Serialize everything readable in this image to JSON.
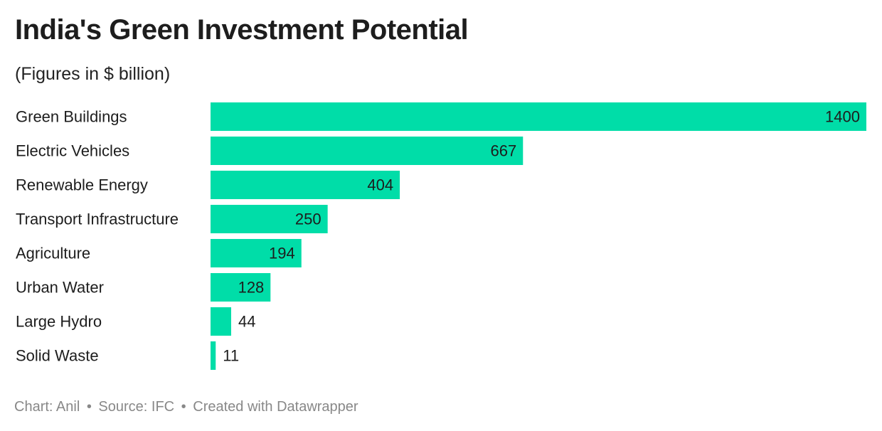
{
  "header": {
    "title": "India's Green Investment Potential",
    "subtitle": "(Figures in $ billion)"
  },
  "chart_data": {
    "type": "bar",
    "orientation": "horizontal",
    "categories": [
      "Green Buildings",
      "Electric Vehicles",
      "Renewable Energy",
      "Transport Infrastructure",
      "Agriculture",
      "Urban Water",
      "Large Hydro",
      "Solid Waste"
    ],
    "values": [
      1400,
      667,
      404,
      250,
      194,
      128,
      44,
      11
    ],
    "value_labels": [
      "1400",
      "667",
      "404",
      "250",
      "194",
      "128",
      "44",
      "11"
    ],
    "title": "India's Green Investment Potential",
    "subtitle": "(Figures in $ billion)",
    "xlim": [
      0,
      1400
    ],
    "grid": false,
    "legend": "none",
    "bar_color": "#00dda8"
  },
  "footer": {
    "chart_credit": "Chart: Anil",
    "source": "Source: IFC",
    "tool": "Created with Datawrapper",
    "separator": "•"
  }
}
